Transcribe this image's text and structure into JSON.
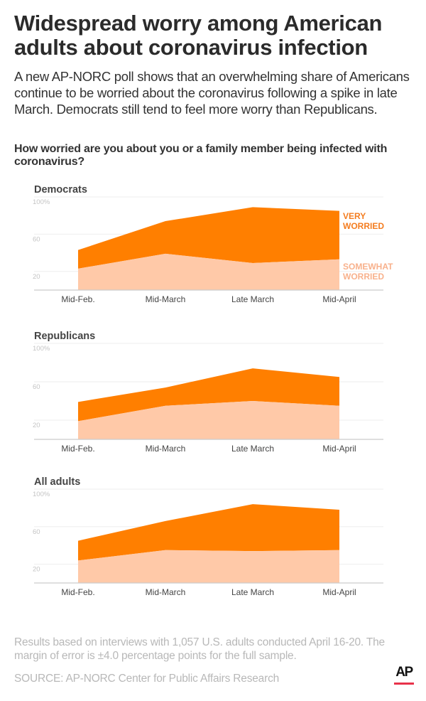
{
  "header": {
    "title": "Widespread worry among American adults about coronavirus infection",
    "subtitle": "A new AP-NORC poll shows that an overwhelming share of Americans continue to be worried about the coronavirus following a spike in late March. Democrats still tend to feel more worry than Republicans.",
    "question": "How worried are you about you or a family member being infected with coronavirus?"
  },
  "colors": {
    "very_worried": "#ff7f00",
    "somewhat_worried": "#ffc9a8",
    "very_label": "#f47d20",
    "somewhat_label": "#f8b18c"
  },
  "legend": {
    "very_line1": "VERY",
    "very_line2": "WORRIED",
    "somewhat_line1": "SOMEWHAT",
    "somewhat_line2": "WORRIED"
  },
  "chart_data": [
    {
      "type": "area",
      "stacked": true,
      "title": "Democrats",
      "categories": [
        "Mid-Feb.",
        "Mid-March",
        "Late March",
        "Mid-April"
      ],
      "yticks": [
        "20",
        "60",
        "100%"
      ],
      "ylim": [
        0,
        100
      ],
      "grid": true,
      "series": [
        {
          "name": "Somewhat worried",
          "values": [
            23,
            39,
            29,
            33
          ]
        },
        {
          "name": "Very worried",
          "values": [
            20,
            35,
            60,
            52
          ]
        }
      ],
      "legend_position": "right"
    },
    {
      "type": "area",
      "stacked": true,
      "title": "Republicans",
      "categories": [
        "Mid-Feb.",
        "Mid-March",
        "Late March",
        "Mid-April"
      ],
      "yticks": [
        "20",
        "60",
        "100%"
      ],
      "ylim": [
        0,
        100
      ],
      "grid": true,
      "series": [
        {
          "name": "Somewhat worried",
          "values": [
            19,
            35,
            40,
            35
          ]
        },
        {
          "name": "Very worried",
          "values": [
            20,
            19,
            34,
            30
          ]
        }
      ]
    },
    {
      "type": "area",
      "stacked": true,
      "title": "All adults",
      "categories": [
        "Mid-Feb.",
        "Mid-March",
        "Late March",
        "Mid-April"
      ],
      "yticks": [
        "20",
        "60",
        "100%"
      ],
      "ylim": [
        0,
        100
      ],
      "grid": true,
      "series": [
        {
          "name": "Somewhat worried",
          "values": [
            24,
            35,
            34,
            35
          ]
        },
        {
          "name": "Very worried",
          "values": [
            21,
            31,
            50,
            43
          ]
        }
      ]
    }
  ],
  "footer": {
    "note": "Results based on interviews with 1,057 U.S. adults conducted April 16-20. The margin of error is ±4.0 percentage points for the full sample.",
    "source": "SOURCE: AP-NORC Center for Public Affairs Research",
    "logo_text": "AP"
  }
}
